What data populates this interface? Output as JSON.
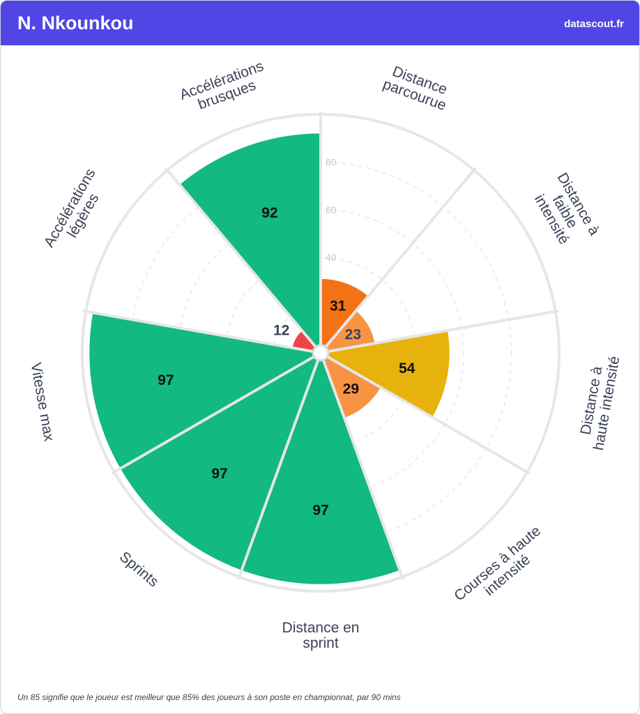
{
  "header": {
    "title": "N. Nkounkou",
    "brand": "datascout.fr"
  },
  "footer": {
    "note": "Un 85 signifie que le joueur est meilleur que 85% des joueurs à son poste en championnat, par 90 mins"
  },
  "chart_data": {
    "type": "polar-area",
    "title": "",
    "rlim": [
      0,
      100
    ],
    "radial_ticks": [
      "40",
      "60",
      "80"
    ],
    "radial_tick_values": [
      40,
      60,
      80
    ],
    "categories": [
      {
        "label_lines": [
          "Distance",
          "parcourue"
        ],
        "value": 31,
        "color": "#f47216",
        "label_color": "#111111"
      },
      {
        "label_lines": [
          "Distance à",
          "faible",
          "intensité"
        ],
        "value": 23,
        "color": "#f79444",
        "label_color": "#3a4256"
      },
      {
        "label_lines": [
          "Distance à",
          "haute intensité"
        ],
        "value": 54,
        "color": "#e8b20c",
        "label_color": "#111111"
      },
      {
        "label_lines": [
          "Courses à haute",
          "intensité"
        ],
        "value": 29,
        "color": "#f79444",
        "label_color": "#111111"
      },
      {
        "label_lines": [
          "Distance en",
          "sprint"
        ],
        "value": 97,
        "color": "#12b981",
        "label_color": "#111111"
      },
      {
        "label_lines": [
          "Sprints"
        ],
        "value": 97,
        "color": "#12b981",
        "label_color": "#111111"
      },
      {
        "label_lines": [
          "Vitesse max"
        ],
        "value": 97,
        "color": "#12b981",
        "label_color": "#111111"
      },
      {
        "label_lines": [
          "Accélérations",
          "légères"
        ],
        "value": 12,
        "color": "#ee4444",
        "label_color": "#3a4256"
      },
      {
        "label_lines": [
          "Accélérations",
          "brusques"
        ],
        "value": 92,
        "color": "#12b981",
        "label_color": "#111111"
      }
    ],
    "grid": true,
    "legend": "none"
  }
}
